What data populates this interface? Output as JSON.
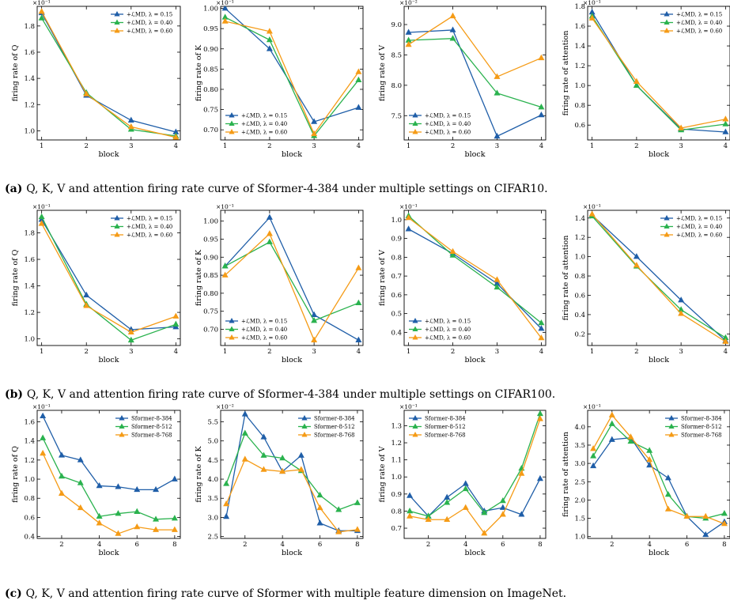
{
  "colors": {
    "blue": "#1f5ea8",
    "green": "#2ab24e",
    "orange": "#f59b16"
  },
  "captions": [
    {
      "label": "(a)",
      "text": "Q, K, V and attention firing rate curve of Sformer-4-384 under multiple settings on CIFAR10."
    },
    {
      "label": "(b)",
      "text": "Q, K, V and attention firing rate curve of Sformer-4-384 under multiple settings on CIFAR100."
    },
    {
      "label": "(c)",
      "text": "Q, K, V and attention firing rate curve of Sformer with multiple feature dimension on ImageNet."
    }
  ],
  "legends": {
    "lambda": [
      "+ℒMD, λ = 0.15",
      "+ℒMD, λ = 0.40",
      "+ℒMD, λ = 0.60"
    ],
    "dims": [
      "Sformer-8-384",
      "Sformer-8-512",
      "Sformer-8-768"
    ]
  },
  "chart_data": [
    {
      "type": "line",
      "panel": "a1",
      "xlabel": "block",
      "ylabel": "firing rate of Q",
      "exponent": "×10⁻¹",
      "legend": "top-right",
      "legend_set": "lambda",
      "x": [
        1,
        2,
        3,
        4
      ],
      "xticks": [
        1,
        2,
        3,
        4
      ],
      "xlim": [
        0.9,
        4.1
      ],
      "ylim": [
        0.93,
        1.95
      ],
      "yticks": [
        1.0,
        1.2,
        1.4,
        1.6,
        1.8
      ],
      "ytick_labels": [
        "1.0",
        "1.2",
        "1.4",
        "1.6",
        "1.8"
      ],
      "series": [
        {
          "values": [
            1.9,
            1.27,
            1.08,
            0.99
          ]
        },
        {
          "values": [
            1.86,
            1.29,
            1.01,
            0.96
          ]
        },
        {
          "values": [
            1.91,
            1.28,
            1.03,
            0.95
          ]
        }
      ]
    },
    {
      "type": "line",
      "panel": "a2",
      "xlabel": "block",
      "ylabel": "firing rate of K",
      "exponent": "×10⁻¹",
      "legend": "bottom-left",
      "legend_set": "lambda",
      "x": [
        1,
        2,
        3,
        4
      ],
      "xticks": [
        1,
        2,
        3,
        4
      ],
      "xlim": [
        0.9,
        4.1
      ],
      "ylim": [
        0.675,
        1.005
      ],
      "yticks": [
        0.7,
        0.75,
        0.8,
        0.85,
        0.9,
        0.95,
        1.0
      ],
      "ytick_labels": [
        "0.70",
        "0.75",
        "0.80",
        "0.85",
        "0.90",
        "0.95",
        "1.00"
      ],
      "series": [
        {
          "values": [
            1.0,
            0.9,
            0.72,
            0.755
          ]
        },
        {
          "values": [
            0.978,
            0.922,
            0.685,
            0.823
          ]
        },
        {
          "values": [
            0.968,
            0.943,
            0.69,
            0.843
          ]
        }
      ]
    },
    {
      "type": "line",
      "panel": "a3",
      "xlabel": "block",
      "ylabel": "firing rate of V",
      "exponent": "×10⁻²",
      "legend": "bottom-left",
      "legend_set": "lambda",
      "x": [
        1,
        2,
        3,
        4
      ],
      "xticks": [
        1,
        2,
        3,
        4
      ],
      "xlim": [
        0.9,
        4.1
      ],
      "ylim": [
        7.1,
        9.3
      ],
      "yticks": [
        7.5,
        8.0,
        8.5,
        9.0
      ],
      "ytick_labels": [
        "7.5",
        "8.0",
        "8.5",
        "9.0"
      ],
      "series": [
        {
          "values": [
            8.87,
            8.91,
            7.16,
            7.51
          ]
        },
        {
          "values": [
            8.74,
            8.77,
            7.87,
            7.64
          ]
        },
        {
          "values": [
            8.67,
            9.14,
            8.14,
            8.45
          ]
        }
      ]
    },
    {
      "type": "line",
      "panel": "a4",
      "xlabel": "block",
      "ylabel": "firing rate of attention",
      "exponent": "×10⁻¹",
      "legend": "top-right",
      "legend_set": "lambda",
      "x": [
        1,
        2,
        3,
        4
      ],
      "xticks": [
        1,
        2,
        3,
        4
      ],
      "xlim": [
        0.9,
        4.1
      ],
      "ylim": [
        0.45,
        1.8
      ],
      "yticks": [
        0.6,
        0.8,
        1.0,
        1.2,
        1.4,
        1.6,
        1.8
      ],
      "ytick_labels": [
        "0.6",
        "0.8",
        "1.0",
        "1.2",
        "1.4",
        "1.6",
        "1.8"
      ],
      "series": [
        {
          "values": [
            1.74,
            1.0,
            0.56,
            0.53
          ]
        },
        {
          "values": [
            1.7,
            1.0,
            0.55,
            0.61
          ]
        },
        {
          "values": [
            1.68,
            1.04,
            0.57,
            0.66
          ]
        }
      ]
    },
    {
      "type": "line",
      "panel": "b1",
      "xlabel": "block",
      "ylabel": "firing rate of Q",
      "exponent": "×10⁻¹",
      "legend": "top-right",
      "legend_set": "lambda",
      "x": [
        1,
        2,
        3,
        4
      ],
      "xticks": [
        1,
        2,
        3,
        4
      ],
      "xlim": [
        0.9,
        4.1
      ],
      "ylim": [
        0.95,
        1.97
      ],
      "yticks": [
        1.0,
        1.2,
        1.4,
        1.6,
        1.8
      ],
      "ytick_labels": [
        "1.0",
        "1.2",
        "1.4",
        "1.6",
        "1.8"
      ],
      "series": [
        {
          "values": [
            1.9,
            1.33,
            1.07,
            1.09
          ]
        },
        {
          "values": [
            1.92,
            1.26,
            0.99,
            1.11
          ]
        },
        {
          "values": [
            1.87,
            1.25,
            1.05,
            1.17
          ]
        }
      ]
    },
    {
      "type": "line",
      "panel": "b2",
      "xlabel": "block",
      "ylabel": "firing rate of K",
      "exponent": "×10⁻¹",
      "legend": "bottom-left",
      "legend_set": "lambda",
      "x": [
        1,
        2,
        3,
        4
      ],
      "xticks": [
        1,
        2,
        3,
        4
      ],
      "xlim": [
        0.9,
        4.1
      ],
      "ylim": [
        0.655,
        1.03
      ],
      "yticks": [
        0.7,
        0.75,
        0.8,
        0.85,
        0.9,
        0.95,
        1.0
      ],
      "ytick_labels": [
        "0.70",
        "0.75",
        "0.80",
        "0.85",
        "0.90",
        "0.95",
        "1.00"
      ],
      "series": [
        {
          "values": [
            0.875,
            1.01,
            0.74,
            0.67
          ]
        },
        {
          "values": [
            0.875,
            0.942,
            0.724,
            0.773
          ]
        },
        {
          "values": [
            0.85,
            0.965,
            0.67,
            0.87
          ]
        }
      ]
    },
    {
      "type": "line",
      "panel": "b3",
      "xlabel": "block",
      "ylabel": "firing rate of V",
      "exponent": "×10⁻¹",
      "legend": "bottom-left",
      "legend_set": "lambda",
      "x": [
        1,
        2,
        3,
        4
      ],
      "xticks": [
        1,
        2,
        3,
        4
      ],
      "xlim": [
        0.9,
        4.1
      ],
      "ylim": [
        0.33,
        1.05
      ],
      "yticks": [
        0.4,
        0.5,
        0.6,
        0.7,
        0.8,
        0.9,
        1.0
      ],
      "ytick_labels": [
        "0.4",
        "0.5",
        "0.6",
        "0.7",
        "0.8",
        "0.9",
        "1.0"
      ],
      "series": [
        {
          "values": [
            0.95,
            0.82,
            0.66,
            0.42
          ]
        },
        {
          "values": [
            1.02,
            0.81,
            0.64,
            0.45
          ]
        },
        {
          "values": [
            1.01,
            0.83,
            0.68,
            0.37
          ]
        }
      ]
    },
    {
      "type": "line",
      "panel": "b4",
      "xlabel": "block",
      "ylabel": "firing rate of attention",
      "exponent": "×10⁻¹",
      "legend": "top-right",
      "legend_set": "lambda",
      "x": [
        1,
        2,
        3,
        4
      ],
      "xticks": [
        1,
        2,
        3,
        4
      ],
      "xlim": [
        0.9,
        4.1
      ],
      "ylim": [
        0.08,
        1.48
      ],
      "yticks": [
        0.2,
        0.4,
        0.6,
        0.8,
        1.0,
        1.2,
        1.4
      ],
      "ytick_labels": [
        "0.2",
        "0.4",
        "0.6",
        "0.8",
        "1.0",
        "1.2",
        "1.4"
      ],
      "series": [
        {
          "values": [
            1.43,
            1.0,
            0.55,
            0.13
          ]
        },
        {
          "values": [
            1.42,
            0.9,
            0.45,
            0.16
          ]
        },
        {
          "values": [
            1.44,
            0.91,
            0.41,
            0.12
          ]
        }
      ]
    },
    {
      "type": "line",
      "panel": "c1",
      "xlabel": "block",
      "ylabel": "firing rate of Q",
      "exponent": "×10⁻¹",
      "legend": "top-right",
      "legend_set": "dims",
      "x": [
        1,
        2,
        3,
        4,
        5,
        6,
        7,
        8
      ],
      "xticks": [
        2,
        4,
        6,
        8
      ],
      "xlim": [
        0.7,
        8.3
      ],
      "ylim": [
        0.38,
        1.72
      ],
      "yticks": [
        0.4,
        0.6,
        0.8,
        1.0,
        1.2,
        1.4,
        1.6
      ],
      "ytick_labels": [
        "0.4",
        "0.6",
        "0.8",
        "1.0",
        "1.2",
        "1.4",
        "1.6"
      ],
      "series": [
        {
          "values": [
            1.66,
            1.25,
            1.2,
            0.93,
            0.92,
            0.89,
            0.89,
            1.0
          ]
        },
        {
          "values": [
            1.43,
            1.03,
            0.96,
            0.61,
            0.64,
            0.66,
            0.58,
            0.59
          ]
        },
        {
          "values": [
            1.27,
            0.85,
            0.7,
            0.54,
            0.43,
            0.5,
            0.47,
            0.47
          ]
        }
      ]
    },
    {
      "type": "line",
      "panel": "c2",
      "xlabel": "block",
      "ylabel": "firing rate of K",
      "exponent": "×10⁻²",
      "legend": "top-right",
      "legend_set": "dims",
      "x": [
        1,
        2,
        3,
        4,
        5,
        6,
        7,
        8
      ],
      "xticks": [
        2,
        4,
        6,
        8
      ],
      "xlim": [
        0.7,
        8.3
      ],
      "ylim": [
        2.45,
        5.8
      ],
      "yticks": [
        2.5,
        3.0,
        3.5,
        4.0,
        4.5,
        5.0,
        5.5
      ],
      "ytick_labels": [
        "2.5",
        "3.0",
        "3.5",
        "4.0",
        "4.5",
        "5.0",
        "5.5"
      ],
      "series": [
        {
          "values": [
            3.02,
            5.7,
            5.1,
            4.2,
            4.62,
            2.85,
            2.65,
            2.65
          ]
        },
        {
          "values": [
            3.88,
            5.2,
            4.62,
            4.55,
            4.22,
            3.58,
            3.2,
            3.38
          ]
        },
        {
          "values": [
            3.35,
            4.52,
            4.25,
            4.2,
            4.25,
            3.25,
            2.62,
            2.68
          ]
        }
      ]
    },
    {
      "type": "line",
      "panel": "c3",
      "xlabel": "block",
      "ylabel": "firing rate of V",
      "exponent": "×10⁻¹",
      "legend": "top-left",
      "legend_set": "dims",
      "x": [
        1,
        2,
        3,
        4,
        5,
        6,
        7,
        8
      ],
      "xticks": [
        2,
        4,
        6,
        8
      ],
      "xlim": [
        0.7,
        8.3
      ],
      "ylim": [
        0.64,
        1.39
      ],
      "yticks": [
        0.7,
        0.8,
        0.9,
        1.0,
        1.1,
        1.2,
        1.3
      ],
      "ytick_labels": [
        "0.7",
        "0.8",
        "0.9",
        "1.0",
        "1.1",
        "1.2",
        "1.3"
      ],
      "series": [
        {
          "values": [
            0.89,
            0.77,
            0.88,
            0.96,
            0.8,
            0.82,
            0.78,
            0.99
          ]
        },
        {
          "values": [
            0.8,
            0.77,
            0.85,
            0.93,
            0.79,
            0.86,
            1.05,
            1.37
          ]
        },
        {
          "values": [
            0.77,
            0.75,
            0.75,
            0.82,
            0.67,
            0.78,
            1.02,
            1.34
          ]
        }
      ]
    },
    {
      "type": "line",
      "panel": "c4",
      "xlabel": "block",
      "ylabel": "firing rate of attention",
      "exponent": "×10⁻¹",
      "legend": "top-right",
      "legend_set": "dims",
      "x": [
        1,
        2,
        3,
        4,
        5,
        6,
        7,
        8
      ],
      "xticks": [
        2,
        4,
        6,
        8
      ],
      "xlim": [
        0.7,
        8.3
      ],
      "ylim": [
        0.95,
        4.45
      ],
      "yticks": [
        1.0,
        1.5,
        2.0,
        2.5,
        3.0,
        3.5,
        4.0
      ],
      "ytick_labels": [
        "1.0",
        "1.5",
        "2.0",
        "2.5",
        "3.0",
        "3.5",
        "4.0"
      ],
      "series": [
        {
          "values": [
            2.93,
            3.65,
            3.7,
            2.95,
            2.6,
            1.55,
            1.05,
            1.4
          ]
        },
        {
          "values": [
            3.2,
            4.08,
            3.6,
            3.35,
            2.15,
            1.55,
            1.5,
            1.63
          ]
        },
        {
          "values": [
            3.4,
            4.32,
            3.72,
            3.1,
            1.75,
            1.55,
            1.55,
            1.35
          ]
        }
      ]
    }
  ]
}
